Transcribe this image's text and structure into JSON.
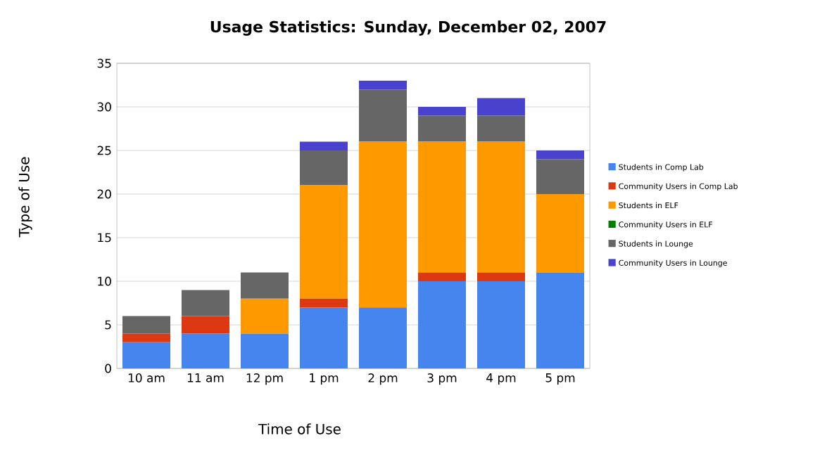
{
  "chart_data": {
    "type": "bar",
    "title": "Usage Statistics: Sunday, December 02, 2007",
    "xlabel": "Time of Use",
    "ylabel": "Type of Use",
    "categories": [
      "10 am",
      "11 am",
      "12 pm",
      "1 pm",
      "2 pm",
      "3 pm",
      "4 pm",
      "5 pm"
    ],
    "stacked": true,
    "ylim": [
      0,
      35
    ],
    "yticks": [
      0,
      5,
      10,
      15,
      20,
      25,
      30,
      35
    ],
    "grid": "y",
    "legend": "right",
    "series": [
      {
        "name": "Students in Comp Lab",
        "color": "#4684ee",
        "values": [
          3,
          4,
          4,
          7,
          7,
          10,
          10,
          11
        ]
      },
      {
        "name": "Community Users in Comp Lab",
        "color": "#dc3912",
        "values": [
          1,
          2,
          0,
          1,
          0,
          1,
          1,
          0
        ]
      },
      {
        "name": "Students in ELF",
        "color": "#ff9900",
        "values": [
          0,
          0,
          4,
          13,
          19,
          15,
          15,
          9
        ]
      },
      {
        "name": "Community Users in ELF",
        "color": "#008000",
        "values": [
          0,
          0,
          0,
          0,
          0,
          0,
          0,
          0
        ]
      },
      {
        "name": "Students in Lounge",
        "color": "#666666",
        "values": [
          2,
          3,
          3,
          4,
          6,
          3,
          3,
          4
        ]
      },
      {
        "name": "Community Users in Lounge",
        "color": "#4942cc",
        "values": [
          0,
          0,
          0,
          1,
          1,
          1,
          2,
          1
        ]
      }
    ]
  }
}
